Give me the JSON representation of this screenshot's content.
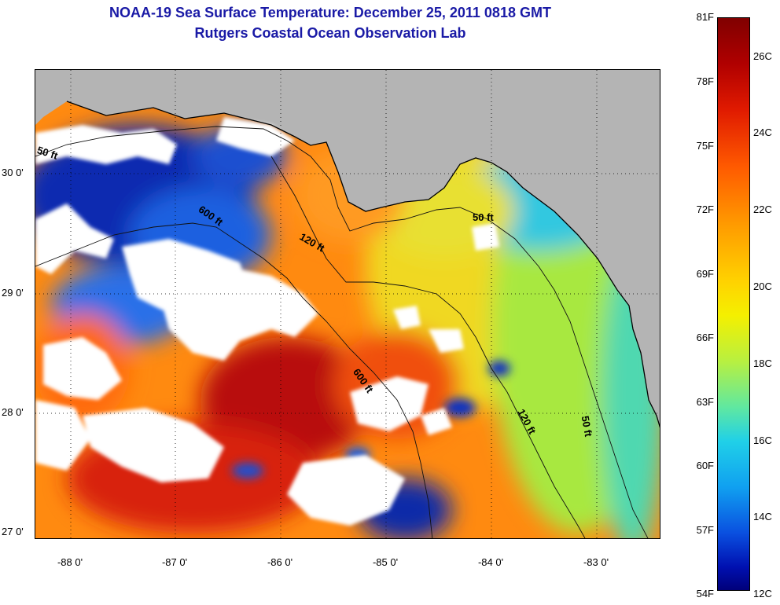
{
  "header": {
    "title": "NOAA-19 Sea Surface Temperature:  December 25, 2011 0818 GMT",
    "subtitle": "Rutgers Coastal Ocean Observation Lab"
  },
  "map": {
    "lat_ticks": [
      "30 0'",
      "29 0'",
      "28 0'",
      "27 0'"
    ],
    "lon_ticks": [
      "-88 0'",
      "-87 0'",
      "-86 0'",
      "-85 0'",
      "-84 0'",
      "-83 0'"
    ],
    "contour_labels": [
      "50 ft",
      "600 ft",
      "120 ft",
      "50 ft",
      "600 ft",
      "120 ft",
      "50 ft"
    ],
    "colors": {
      "land": "#b4b4b4",
      "cloud": "#ffffff",
      "cold": "#0a2ab0",
      "cool": "#20b8e8",
      "mid": "#e8f020",
      "warm": "#ff8a10",
      "hot": "#d01808"
    }
  },
  "colorbar": {
    "fahrenheit": [
      "81F",
      "78F",
      "75F",
      "72F",
      "69F",
      "66F",
      "63F",
      "60F",
      "57F",
      "54F"
    ],
    "celsius": [
      "26C",
      "24C",
      "22C",
      "20C",
      "18C",
      "16C",
      "14C",
      "12C"
    ]
  }
}
